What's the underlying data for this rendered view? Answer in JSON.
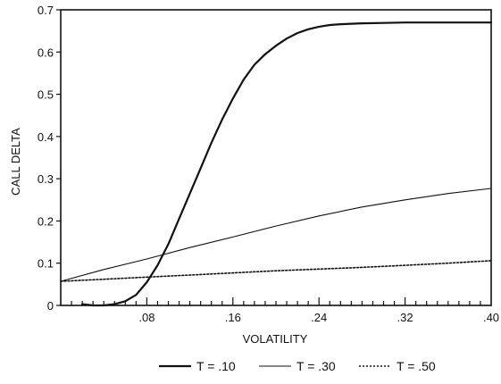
{
  "chart_data": {
    "type": "line",
    "title": "",
    "xlabel": "VOLATILITY",
    "ylabel": "CALL DELTA",
    "xlim": [
      0.0,
      0.4
    ],
    "ylim": [
      0,
      0.7
    ],
    "x_ticks": [
      0.08,
      0.16,
      0.24,
      0.32,
      0.4
    ],
    "x_tick_labels": [
      ".08",
      ".16",
      ".24",
      ".32",
      ".40"
    ],
    "y_ticks": [
      0,
      0.1,
      0.2,
      0.3,
      0.4,
      0.5,
      0.6,
      0.7
    ],
    "y_tick_labels": [
      "0",
      "0.1",
      "0.2",
      "0.3",
      "0.4",
      "0.5",
      "0.6",
      "0.7"
    ],
    "grid": false,
    "legend_position": "bottom-center",
    "series": [
      {
        "name": "T = .10",
        "style": "solid",
        "x": [
          0.02,
          0.03,
          0.04,
          0.05,
          0.06,
          0.07,
          0.08,
          0.09,
          0.1,
          0.11,
          0.12,
          0.13,
          0.14,
          0.15,
          0.16,
          0.17,
          0.18,
          0.19,
          0.2,
          0.21,
          0.22,
          0.23,
          0.24,
          0.25,
          0.26,
          0.28,
          0.3,
          0.32,
          0.34,
          0.36,
          0.38,
          0.4
        ],
        "y": [
          0.003,
          0.0,
          0.0,
          0.003,
          0.01,
          0.025,
          0.055,
          0.095,
          0.145,
          0.205,
          0.265,
          0.325,
          0.385,
          0.44,
          0.49,
          0.535,
          0.57,
          0.595,
          0.615,
          0.632,
          0.645,
          0.654,
          0.66,
          0.664,
          0.666,
          0.668,
          0.669,
          0.67,
          0.67,
          0.67,
          0.67,
          0.67
        ]
      },
      {
        "name": "T = .30",
        "style": "thin",
        "x": [
          0.0,
          0.04,
          0.08,
          0.12,
          0.16,
          0.2,
          0.24,
          0.28,
          0.32,
          0.36,
          0.4
        ],
        "y": [
          0.057,
          0.085,
          0.11,
          0.137,
          0.162,
          0.188,
          0.212,
          0.233,
          0.25,
          0.265,
          0.277
        ]
      },
      {
        "name": "T = .50",
        "style": "dotted",
        "x": [
          0.0,
          0.04,
          0.08,
          0.12,
          0.16,
          0.2,
          0.24,
          0.28,
          0.32,
          0.36,
          0.4
        ],
        "y": [
          0.057,
          0.062,
          0.067,
          0.072,
          0.077,
          0.082,
          0.086,
          0.09,
          0.095,
          0.1,
          0.106
        ]
      }
    ]
  }
}
